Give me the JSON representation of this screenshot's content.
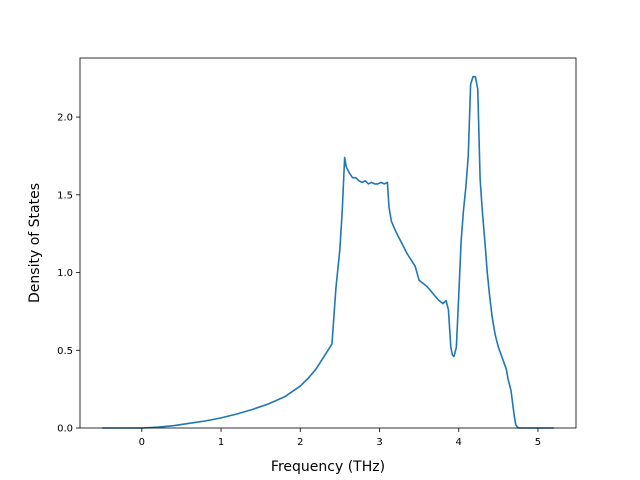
{
  "chart_data": {
    "type": "line",
    "xlabel": "Frequency (THz)",
    "ylabel": "Density of States",
    "xlim": [
      -0.78,
      5.48
    ],
    "ylim": [
      0.0,
      2.38
    ],
    "x_ticks": [
      0,
      1,
      2,
      3,
      4,
      5
    ],
    "y_ticks": [
      0.0,
      0.5,
      1.0,
      1.5,
      2.0
    ],
    "x_tick_labels": [
      "0",
      "1",
      "2",
      "3",
      "4",
      "5"
    ],
    "y_tick_labels": [
      "0.0",
      "0.5",
      "1.0",
      "1.5",
      "2.0"
    ],
    "grid": false,
    "series": [
      {
        "color": "#1f77b4",
        "x": [
          -0.5,
          0.0,
          0.2,
          0.4,
          0.6,
          0.8,
          1.0,
          1.2,
          1.4,
          1.6,
          1.8,
          2.0,
          2.1,
          2.2,
          2.3,
          2.35,
          2.4,
          2.45,
          2.5,
          2.53,
          2.56,
          2.58,
          2.62,
          2.66,
          2.7,
          2.74,
          2.78,
          2.82,
          2.86,
          2.9,
          2.94,
          2.98,
          3.02,
          3.06,
          3.1,
          3.12,
          3.15,
          3.2,
          3.25,
          3.3,
          3.35,
          3.4,
          3.45,
          3.5,
          3.55,
          3.6,
          3.65,
          3.7,
          3.75,
          3.8,
          3.84,
          3.87,
          3.9,
          3.92,
          3.94,
          3.97,
          4.0,
          4.03,
          4.06,
          4.09,
          4.12,
          4.15,
          4.18,
          4.21,
          4.24,
          4.27,
          4.3,
          4.33,
          4.36,
          4.39,
          4.42,
          4.46,
          4.5,
          4.55,
          4.6,
          4.62,
          4.64,
          4.66,
          4.68,
          4.7,
          4.72,
          4.75,
          5.2
        ],
        "y": [
          0.0,
          0.0,
          0.005,
          0.015,
          0.03,
          0.045,
          0.065,
          0.09,
          0.12,
          0.155,
          0.2,
          0.27,
          0.32,
          0.38,
          0.46,
          0.5,
          0.54,
          0.9,
          1.15,
          1.4,
          1.74,
          1.68,
          1.64,
          1.61,
          1.61,
          1.59,
          1.58,
          1.59,
          1.57,
          1.58,
          1.57,
          1.57,
          1.58,
          1.57,
          1.58,
          1.42,
          1.33,
          1.27,
          1.22,
          1.17,
          1.12,
          1.08,
          1.04,
          0.95,
          0.93,
          0.91,
          0.88,
          0.85,
          0.82,
          0.8,
          0.82,
          0.76,
          0.52,
          0.47,
          0.46,
          0.52,
          0.85,
          1.2,
          1.4,
          1.55,
          1.75,
          2.21,
          2.26,
          2.26,
          2.18,
          1.6,
          1.38,
          1.2,
          1.0,
          0.85,
          0.72,
          0.6,
          0.52,
          0.45,
          0.38,
          0.32,
          0.28,
          0.24,
          0.16,
          0.08,
          0.02,
          0.0,
          0.0
        ]
      }
    ]
  }
}
